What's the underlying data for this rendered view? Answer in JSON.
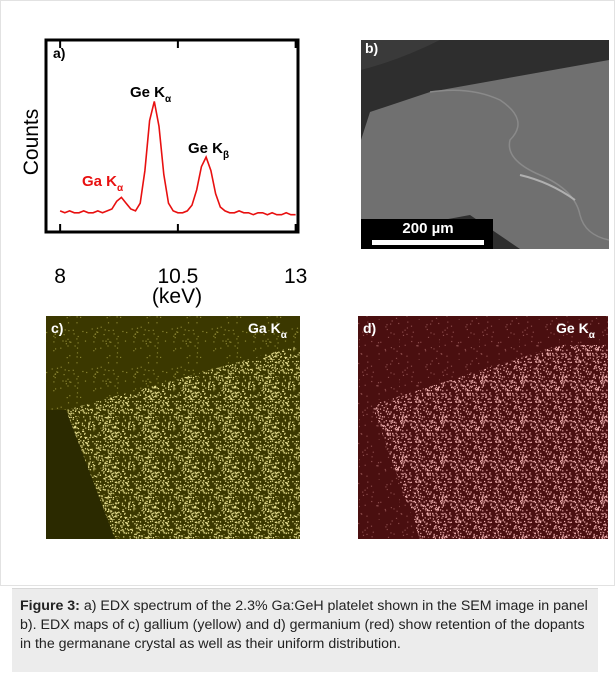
{
  "chart_data": {
    "type": "line",
    "panel_label": "a)",
    "x_label": "(keV)",
    "y_label": "Counts",
    "x": [
      8.0,
      8.1,
      8.2,
      8.3,
      8.4,
      8.5,
      8.6,
      8.7,
      8.8,
      8.9,
      9.0,
      9.1,
      9.2,
      9.3,
      9.4,
      9.5,
      9.6,
      9.7,
      9.8,
      9.9,
      10.0,
      10.1,
      10.2,
      10.3,
      10.4,
      10.5,
      10.6,
      10.7,
      10.8,
      10.9,
      11.0,
      11.1,
      11.2,
      11.3,
      11.4,
      11.5,
      11.6,
      11.7,
      11.8,
      11.9,
      12.0,
      12.1,
      12.2,
      12.3,
      12.4,
      12.5,
      12.6,
      12.7,
      12.8,
      12.9,
      13.0
    ],
    "values": [
      11,
      10,
      11,
      10,
      10,
      11,
      10,
      10,
      11,
      10,
      11,
      12,
      16,
      18,
      15,
      12,
      11,
      15,
      32,
      58,
      68,
      55,
      30,
      15,
      11,
      10,
      10,
      11,
      14,
      22,
      34,
      39,
      32,
      20,
      13,
      11,
      10,
      10,
      11,
      10,
      10,
      9,
      10,
      10,
      9,
      10,
      9,
      9,
      10,
      9,
      9
    ],
    "color": "#e81010",
    "xlim": [
      7.7,
      13.05
    ],
    "ylim": [
      0,
      100
    ],
    "xticks": [
      8,
      10.5,
      13
    ],
    "annotations": [
      {
        "text": "Ga K",
        "sub": "α",
        "color": "#e81010"
      },
      {
        "text": "Ge K",
        "sub": "α",
        "color": "#000000"
      },
      {
        "text": "Ge K",
        "sub": "β",
        "color": "#000000"
      }
    ]
  },
  "panels": {
    "b": {
      "label": "b)",
      "scale_bar": "200 µm"
    },
    "c": {
      "label": "c)",
      "map": {
        "text": "Ga K",
        "sub": "α"
      }
    },
    "d": {
      "label": "d)",
      "map": {
        "text": "Ge K",
        "sub": "α"
      }
    }
  },
  "caption": {
    "label": "Figure 3:",
    "text": "a) EDX spectrum of the 2.3% Ga:GeH platelet shown in the SEM image in panel b). EDX maps of c) gallium (yellow) and d) germanium (red) show retention of the dopants in the germanane crystal as well as their uniform distribution."
  }
}
